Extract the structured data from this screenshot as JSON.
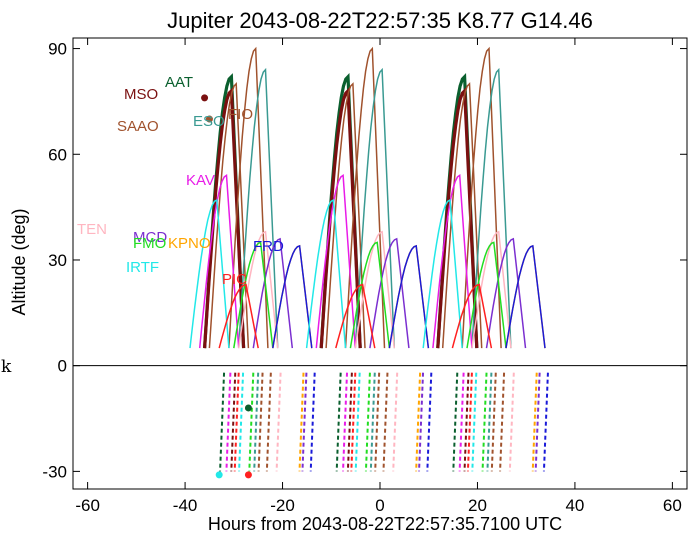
{
  "chart_data": {
    "type": "line",
    "title": "Jupiter 2043-08-22T22:57:35  K8.77  G14.46",
    "xlabel": "Hours from 2043-08-22T22:57:35.7100 UTC",
    "ylabel": "Altitude (deg)",
    "side_label": "k",
    "xlim": [
      -63,
      63
    ],
    "ylim": [
      -35,
      93
    ],
    "xticks": [
      "-60",
      "-40",
      "-20",
      "0",
      "20",
      "40",
      "60"
    ],
    "yticks": [
      "90",
      "60",
      "30",
      "0",
      "-30"
    ],
    "xtick_values": [
      -60,
      -40,
      -20,
      0,
      20,
      40,
      60
    ],
    "ytick_values": [
      90,
      60,
      30,
      0,
      -30
    ],
    "zero_line": true,
    "observatories": [
      {
        "name": "AAT",
        "color": "#0a5f2e",
        "peak": 82,
        "t0": -36,
        "heavy": true
      },
      {
        "name": "MSO",
        "color": "#7a1010",
        "peak": 78,
        "t0": -36,
        "heavy": true
      },
      {
        "name": "SAAO",
        "color": "#a0522d",
        "peak": 90,
        "t0": -31,
        "heavy": false
      },
      {
        "name": "FIO",
        "color": "#a0522d",
        "peak": 80,
        "t0": -35,
        "heavy": false
      },
      {
        "name": "ESO",
        "color": "#3a9a92",
        "peak": 84,
        "t0": -29,
        "heavy": false
      },
      {
        "name": "KAV",
        "color": "#e81ce8",
        "peak": 54,
        "t0": -37,
        "heavy": false
      },
      {
        "name": "TEN",
        "color": "#ffb6c1",
        "peak": 38,
        "t0": -29,
        "heavy": false
      },
      {
        "name": "MCD",
        "color": "#7b2fd0",
        "peak": 36,
        "t0": -26,
        "heavy": false
      },
      {
        "name": "FMO",
        "color": "#22dd22",
        "peak": 35,
        "t0": -30,
        "heavy": false
      },
      {
        "name": "KPNO",
        "color": "#ffa500",
        "peak": 34,
        "t0": -22,
        "heavy": false
      },
      {
        "name": "FRD",
        "color": "#1a1ad8",
        "peak": 34,
        "t0": -22,
        "heavy": false
      },
      {
        "name": "IRTF",
        "color": "#22e8e8",
        "peak": 47,
        "t0": -39,
        "heavy": false
      },
      {
        "name": "PIC",
        "color": "#ff2020",
        "peak": 23,
        "t0": -33,
        "heavy": false
      }
    ],
    "markers": [
      {
        "name": "MSO",
        "x": -36,
        "y": 76,
        "color": "#7a1010"
      },
      {
        "name": "SAAO",
        "x": -35,
        "y": 70,
        "color": "#a0522d"
      },
      {
        "name": "MSO-low",
        "x": -27,
        "y": -12,
        "color": "#0a5f2e"
      },
      {
        "name": "PIC-low",
        "x": -27,
        "y": -31,
        "color": "#ff2020"
      },
      {
        "name": "IRTF-low",
        "x": -33,
        "y": -31,
        "color": "#22e8e8"
      }
    ]
  }
}
